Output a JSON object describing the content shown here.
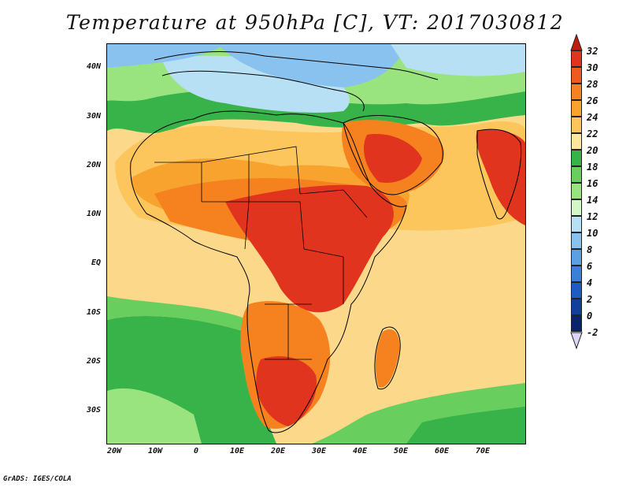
{
  "title": "Temperature at 950hPa [C], VT: 2017030812",
  "credit": "GrADS: IGES/COLA",
  "map": {
    "lat_labels": [
      "40N",
      "30N",
      "20N",
      "10N",
      "EQ",
      "10S",
      "20S",
      "30S"
    ],
    "lon_labels": [
      "20W",
      "10W",
      "0",
      "10E",
      "20E",
      "30E",
      "40E",
      "50E",
      "60E",
      "70E"
    ],
    "lon_range": [
      -22,
      80
    ],
    "lat_range": [
      -37,
      44
    ]
  },
  "colorbar": {
    "labels": [
      "32",
      "30",
      "28",
      "26",
      "24",
      "22",
      "20",
      "18",
      "16",
      "14",
      "12",
      "10",
      "8",
      "6",
      "4",
      "2",
      "0",
      "-2"
    ],
    "colors": [
      "#e0341e",
      "#ef5a1e",
      "#f5821f",
      "#f8a32e",
      "#fcc65c",
      "#fde79b",
      "#38b34a",
      "#68cf5e",
      "#9ae47f",
      "#d4f7c8",
      "#b8e0f5",
      "#8ac2ef",
      "#5c9fe2",
      "#3a7fd8",
      "#1e5cc4",
      "#123f9c",
      "#0a236b"
    ],
    "top_arrow_color": "#c21b0e",
    "bottom_arrow_color": "#dcd6f7"
  }
}
